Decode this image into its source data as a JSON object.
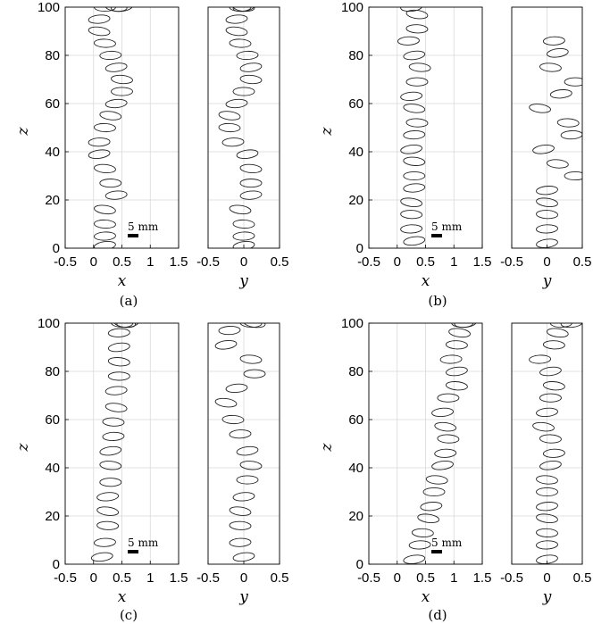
{
  "figure": {
    "caption_a": "(a)",
    "caption_b": "(b)",
    "caption_c": "(c)",
    "caption_d": "(d)",
    "scale_bar_label": "5 mm"
  },
  "chart_data": [
    {
      "type": "scatter",
      "panel": "a",
      "view": "x-z",
      "xlabel": "x",
      "ylabel": "z",
      "xlim": [
        -0.5,
        1.5
      ],
      "ylim": [
        0,
        100
      ],
      "xticks": [
        "-0.5",
        "0",
        "0.5",
        "1",
        "1.5"
      ],
      "yticks": [
        "0",
        "20",
        "40",
        "60",
        "80",
        "100"
      ],
      "x": [
        0.2,
        0.2,
        0.2,
        0.2,
        0.4,
        0.3,
        0.2,
        0.1,
        0.1,
        0.2,
        0.3,
        0.4,
        0.5,
        0.5,
        0.4,
        0.3,
        0.2,
        0.1,
        0.1,
        0.2,
        0.4,
        0.5
      ],
      "z": [
        1,
        5,
        10,
        16,
        22,
        27,
        33,
        39,
        44,
        50,
        55,
        60,
        65,
        70,
        75,
        80,
        85,
        90,
        95,
        100,
        100,
        100
      ]
    },
    {
      "type": "scatter",
      "panel": "a",
      "view": "y-z",
      "xlabel": "y",
      "ylabel": "",
      "xlim": [
        -0.5,
        0.5
      ],
      "ylim": [
        0,
        100
      ],
      "xticks": [
        "-0.5",
        "0",
        "0.5"
      ],
      "x": [
        0.0,
        0.0,
        0.0,
        -0.05,
        0.1,
        0.1,
        0.1,
        0.05,
        -0.15,
        -0.2,
        -0.2,
        -0.1,
        0.0,
        0.1,
        0.1,
        0.05,
        -0.05,
        -0.1,
        -0.1,
        -0.05,
        0.0,
        0.0
      ],
      "z": [
        1,
        5,
        10,
        16,
        22,
        27,
        33,
        39,
        44,
        50,
        55,
        60,
        65,
        70,
        75,
        80,
        85,
        90,
        95,
        100,
        100,
        100
      ]
    },
    {
      "type": "scatter",
      "panel": "b",
      "view": "x-z",
      "xlabel": "x",
      "ylabel": "z",
      "xlim": [
        -0.5,
        1.5
      ],
      "ylim": [
        0,
        100
      ],
      "xticks": [
        "-0.5",
        "0",
        "0.5",
        "1",
        "1.5"
      ],
      "yticks": [
        "0",
        "20",
        "40",
        "60",
        "80",
        "100"
      ],
      "x": [
        0.3,
        0.25,
        0.25,
        0.25,
        0.3,
        0.3,
        0.3,
        0.25,
        0.3,
        0.35,
        0.3,
        0.25,
        0.35,
        0.4,
        0.3,
        0.2,
        0.35,
        0.35,
        0.25
      ],
      "z": [
        3,
        8,
        14,
        19,
        25,
        30,
        36,
        41,
        47,
        52,
        58,
        63,
        69,
        75,
        80,
        86,
        91,
        97,
        100
      ]
    },
    {
      "type": "scatter",
      "panel": "b",
      "view": "y-z",
      "xlabel": "y",
      "ylabel": "",
      "xlim": [
        -0.5,
        0.5
      ],
      "ylim": [
        0,
        100
      ],
      "xticks": [
        "-0.5",
        "0",
        "0.5"
      ],
      "x": [
        0.0,
        0.0,
        0.0,
        0.0,
        0.0,
        0.4,
        0.15,
        -0.05,
        0.35,
        0.3,
        -0.1,
        0.2,
        0.4,
        0.05,
        0.15,
        0.1
      ],
      "z": [
        2,
        8,
        14,
        19,
        24,
        30,
        35,
        41,
        47,
        52,
        58,
        64,
        69,
        75,
        81,
        86,
        92
      ]
    },
    {
      "type": "scatter",
      "panel": "c",
      "view": "x-z",
      "xlabel": "x",
      "ylabel": "z",
      "xlim": [
        -0.5,
        1.5
      ],
      "ylim": [
        0,
        100
      ],
      "xticks": [
        "-0.5",
        "0",
        "0.5",
        "1",
        "1.5"
      ],
      "yticks": [
        "0",
        "20",
        "40",
        "60",
        "80",
        "100"
      ],
      "x": [
        0.15,
        0.2,
        0.25,
        0.25,
        0.25,
        0.3,
        0.3,
        0.3,
        0.35,
        0.35,
        0.4,
        0.4,
        0.45,
        0.45,
        0.45,
        0.45,
        0.5,
        0.55,
        0.6
      ],
      "z": [
        3,
        9,
        16,
        22,
        28,
        34,
        41,
        47,
        53,
        59,
        65,
        72,
        78,
        84,
        90,
        96,
        100,
        100,
        100
      ]
    },
    {
      "type": "scatter",
      "panel": "c",
      "view": "y-z",
      "xlabel": "y",
      "ylabel": "",
      "xlim": [
        -0.5,
        0.5
      ],
      "ylim": [
        0,
        100
      ],
      "xticks": [
        "-0.5",
        "0",
        "0.5"
      ],
      "x": [
        0.0,
        -0.05,
        -0.05,
        -0.05,
        0.0,
        0.05,
        0.1,
        0.05,
        -0.05,
        -0.15,
        -0.25,
        -0.1,
        0.15,
        0.1,
        -0.25,
        -0.2,
        0.1,
        0.15
      ],
      "z": [
        3,
        9,
        16,
        22,
        28,
        35,
        41,
        47,
        54,
        60,
        67,
        73,
        79,
        85,
        91,
        97,
        100,
        100
      ]
    },
    {
      "type": "scatter",
      "panel": "d",
      "view": "x-z",
      "xlabel": "x",
      "ylabel": "z",
      "xlim": [
        -0.5,
        1.5
      ],
      "ylim": [
        0,
        100
      ],
      "xticks": [
        "-0.5",
        "0",
        "0.5",
        "1",
        "1.5"
      ],
      "yticks": [
        "0",
        "20",
        "40",
        "60",
        "80",
        "100"
      ],
      "x": [
        0.3,
        0.4,
        0.45,
        0.55,
        0.6,
        0.65,
        0.7,
        0.8,
        0.85,
        0.9,
        0.85,
        0.8,
        0.9,
        1.05,
        1.05,
        0.95,
        1.05,
        1.1,
        1.2,
        1.15
      ],
      "z": [
        2,
        8,
        13,
        19,
        24,
        30,
        35,
        41,
        46,
        52,
        57,
        63,
        69,
        74,
        80,
        85,
        91,
        96,
        100,
        100
      ]
    },
    {
      "type": "scatter",
      "panel": "d",
      "view": "y-z",
      "xlabel": "y",
      "ylabel": "",
      "xlim": [
        -0.5,
        0.5
      ],
      "ylim": [
        0,
        100
      ],
      "xticks": [
        "-0.5",
        "0",
        "0.5"
      ],
      "x": [
        0.0,
        0.0,
        0.0,
        0.0,
        0.0,
        0.0,
        0.0,
        0.05,
        0.1,
        0.05,
        -0.05,
        0.0,
        0.05,
        0.1,
        0.05,
        -0.1,
        0.1,
        0.15,
        0.35,
        0.2
      ],
      "z": [
        2,
        8,
        13,
        19,
        24,
        30,
        35,
        41,
        46,
        52,
        57,
        63,
        69,
        74,
        80,
        85,
        91,
        96,
        100,
        100
      ]
    }
  ]
}
